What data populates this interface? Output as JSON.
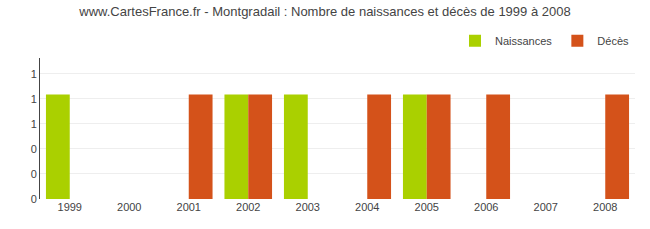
{
  "chart_data": {
    "type": "bar",
    "title": "www.CartesFrance.fr - Montgradail : Nombre de naissances et décès de 1999 à 2008",
    "categories": [
      "1999",
      "2000",
      "2001",
      "2002",
      "2003",
      "2004",
      "2005",
      "2006",
      "2007",
      "2008"
    ],
    "series": [
      {
        "name": "Naissances",
        "color": "#aad000",
        "values": [
          1,
          0,
          0,
          1,
          1,
          0,
          1,
          0,
          0,
          0
        ]
      },
      {
        "name": "Décès",
        "color": "#d4521a",
        "values": [
          0,
          0,
          1,
          1,
          0,
          1,
          1,
          1,
          0,
          1
        ]
      }
    ],
    "ylim": [
      0,
      1.35
    ],
    "yticks": [
      0,
      {
        "value": 0.24,
        "label": "0"
      },
      {
        "value": 0.48,
        "label": "0"
      },
      {
        "value": 0.72,
        "label": "1"
      },
      {
        "value": 0.96,
        "label": "1"
      },
      {
        "value": 1.2,
        "label": "1"
      }
    ],
    "grid": true,
    "legend": "upper right"
  }
}
